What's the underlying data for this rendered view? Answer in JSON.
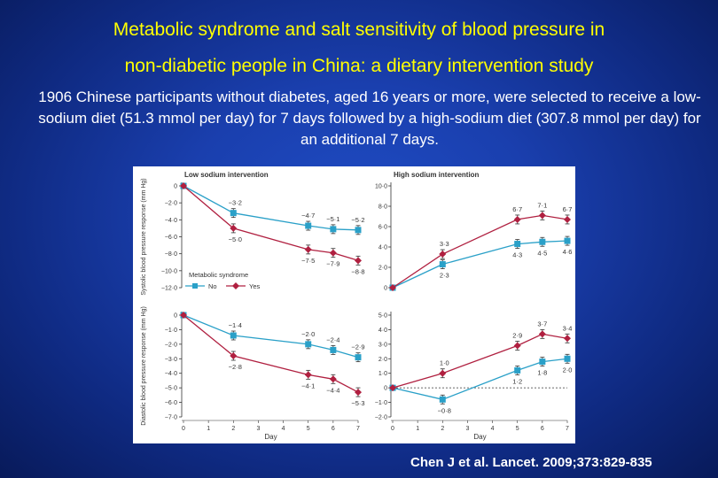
{
  "slide": {
    "title_line1": "Metabolic syndrome and salt sensitivity of blood pressure in",
    "title_line2": "non-diabetic people in China: a dietary intervention study",
    "intro": "1906 Chinese participants without diabetes, aged 16 years or more, were selected to receive a low-sodium diet (51.3 mmol per day) for 7 days followed by a high-sodium diet (307.8 mmol per day) for an additional 7 days.",
    "citation": "Chen J et al. Lancet. 2009;373:829-835"
  },
  "colors": {
    "no_series": "#2aa0c8",
    "yes_series": "#b02040",
    "title_text": "#ffff00"
  },
  "chart_data": [
    {
      "id": "low-sbp",
      "type": "line",
      "title": "Low sodium intervention",
      "ylabel": "Systolic blood pressure response (mm Hg)",
      "xlabel": "",
      "ylim": [
        -12,
        0
      ],
      "yticks": [
        0,
        -2,
        -4,
        -6,
        -8,
        -10,
        -12
      ],
      "ytick_labels": [
        "0",
        "−2·0",
        "−4·0",
        "−6·0",
        "−8·0",
        "−10·0",
        "−12·0"
      ],
      "x": [
        0,
        2,
        5,
        6,
        7
      ],
      "xticks": [],
      "series": [
        {
          "name": "No",
          "values": [
            0,
            -3.2,
            -4.7,
            -5.1,
            -5.2
          ],
          "labels": [
            "",
            "−3·2",
            "−4·7",
            "−5·1",
            "−5·2"
          ]
        },
        {
          "name": "Yes",
          "values": [
            0,
            -5.0,
            -7.5,
            -7.9,
            -8.8
          ],
          "labels": [
            "",
            "−5·0",
            "−7·5",
            "−7·9",
            "−8·8"
          ]
        }
      ],
      "legend": {
        "title": "Metabolic syndrome",
        "entries": [
          "No",
          "Yes"
        ],
        "placement": "bottom-left"
      }
    },
    {
      "id": "high-sbp",
      "type": "line",
      "title": "High sodium intervention",
      "ylabel": "",
      "xlabel": "",
      "ylim": [
        0,
        10
      ],
      "yticks": [
        0,
        2,
        4,
        6,
        8,
        10
      ],
      "ytick_labels": [
        "0",
        "2·0",
        "4·0",
        "6·0",
        "8·0",
        "10·0"
      ],
      "x": [
        0,
        2,
        5,
        6,
        7
      ],
      "xticks": [],
      "series": [
        {
          "name": "No",
          "values": [
            0,
            2.3,
            4.3,
            4.5,
            4.6
          ],
          "labels": [
            "",
            "2·3",
            "4·3",
            "4·5",
            "4·6"
          ]
        },
        {
          "name": "Yes",
          "values": [
            0,
            3.3,
            6.7,
            7.1,
            6.7
          ],
          "labels": [
            "",
            "3·3",
            "6·7",
            "7·1",
            "6·7"
          ]
        }
      ]
    },
    {
      "id": "low-dbp",
      "type": "line",
      "title": "",
      "ylabel": "Diastolic blood pressure response (mm Hg)",
      "xlabel": "Day",
      "ylim": [
        -7,
        0
      ],
      "yticks": [
        0,
        -1,
        -2,
        -3,
        -4,
        -5,
        -6,
        -7
      ],
      "ytick_labels": [
        "0",
        "−1·0",
        "−2·0",
        "−3·0",
        "−4·0",
        "−5·0",
        "−6·0",
        "−7·0"
      ],
      "x": [
        0,
        2,
        5,
        6,
        7
      ],
      "xticks": [
        0,
        1,
        2,
        3,
        4,
        5,
        6,
        7
      ],
      "series": [
        {
          "name": "No",
          "values": [
            0,
            -1.4,
            -2.0,
            -2.4,
            -2.9
          ],
          "labels": [
            "",
            "−1·4",
            "−2·0",
            "−2·4",
            "−2·9"
          ]
        },
        {
          "name": "Yes",
          "values": [
            0,
            -2.8,
            -4.1,
            -4.4,
            -5.3
          ],
          "labels": [
            "",
            "−2·8",
            "−4·1",
            "−4·4",
            "−5·3"
          ]
        }
      ]
    },
    {
      "id": "high-dbp",
      "type": "line",
      "title": "",
      "ylabel": "",
      "xlabel": "Day",
      "ylim": [
        -2,
        5
      ],
      "yticks": [
        5,
        4,
        3,
        2,
        1,
        0,
        -1,
        -2
      ],
      "ytick_labels": [
        "5·0",
        "4·0",
        "3·0",
        "2·0",
        "1·0",
        "0",
        "−1·0",
        "−2·0"
      ],
      "x": [
        0,
        2,
        5,
        6,
        7
      ],
      "xticks": [
        0,
        1,
        2,
        3,
        4,
        5,
        6,
        7
      ],
      "series": [
        {
          "name": "No",
          "values": [
            0,
            -0.8,
            1.2,
            1.8,
            2.0
          ],
          "labels": [
            "",
            "−0·8",
            "1·2",
            "1·8",
            "2·0"
          ]
        },
        {
          "name": "Yes",
          "values": [
            0,
            1.0,
            2.9,
            3.7,
            3.4
          ],
          "labels": [
            "",
            "1·0",
            "2·9",
            "3·7",
            "3·4"
          ]
        }
      ],
      "reference_line": 0
    }
  ]
}
